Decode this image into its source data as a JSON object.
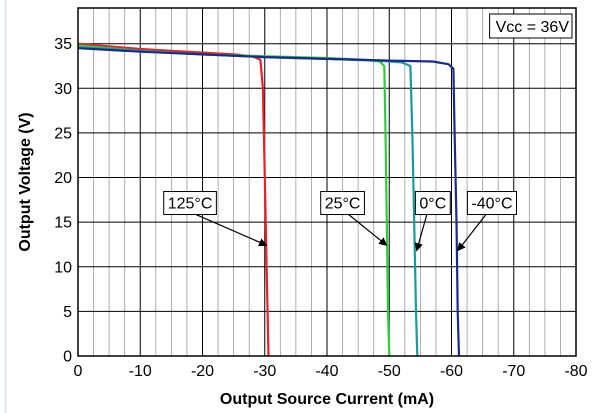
{
  "chart_data": {
    "type": "line",
    "title": "",
    "xlabel": "Output Source Current (mA)",
    "ylabel": "Output Voltage (V)",
    "xlim": [
      0,
      -80
    ],
    "ylim": [
      0,
      39
    ],
    "x_ticks": [
      0,
      -10,
      -20,
      -30,
      -40,
      -50,
      -60,
      -70,
      -80
    ],
    "y_ticks": [
      0,
      5,
      10,
      15,
      20,
      25,
      30,
      35
    ],
    "grid": true,
    "annotation": "Vcc = 36V",
    "series": [
      {
        "name": "125°C",
        "color": "#e8202a",
        "points": [
          [
            0,
            35.0
          ],
          [
            -5,
            34.7
          ],
          [
            -10,
            34.4
          ],
          [
            -15,
            34.2
          ],
          [
            -20,
            34.0
          ],
          [
            -25,
            33.8
          ],
          [
            -28,
            33.6
          ],
          [
            -29.3,
            33.2
          ],
          [
            -29.7,
            30
          ],
          [
            -30.0,
            20
          ],
          [
            -30.3,
            10
          ],
          [
            -30.6,
            0
          ]
        ]
      },
      {
        "name": "25°C",
        "color": "#2ecc40",
        "points": [
          [
            0,
            34.8
          ],
          [
            -10,
            34.2
          ],
          [
            -20,
            33.8
          ],
          [
            -30,
            33.6
          ],
          [
            -40,
            33.4
          ],
          [
            -46,
            33.2
          ],
          [
            -48.5,
            33.0
          ],
          [
            -49.2,
            32.5
          ],
          [
            -49.4,
            25
          ],
          [
            -49.6,
            15
          ],
          [
            -49.8,
            5
          ],
          [
            -50.0,
            0
          ]
        ]
      },
      {
        "name": "0°C",
        "color": "#1a9a9e",
        "points": [
          [
            0,
            34.6
          ],
          [
            -10,
            34.2
          ],
          [
            -20,
            33.8
          ],
          [
            -30,
            33.5
          ],
          [
            -40,
            33.3
          ],
          [
            -48,
            33.1
          ],
          [
            -52,
            32.9
          ],
          [
            -53.4,
            32.5
          ],
          [
            -53.7,
            25
          ],
          [
            -54.0,
            15
          ],
          [
            -54.3,
            5
          ],
          [
            -54.5,
            0
          ]
        ]
      },
      {
        "name": "-40°C",
        "color": "#1a2a8c",
        "points": [
          [
            0,
            34.5
          ],
          [
            -10,
            34.1
          ],
          [
            -20,
            33.8
          ],
          [
            -30,
            33.5
          ],
          [
            -40,
            33.3
          ],
          [
            -50,
            33.1
          ],
          [
            -57,
            33.0
          ],
          [
            -59.5,
            32.7
          ],
          [
            -60.3,
            32.2
          ],
          [
            -60.5,
            25
          ],
          [
            -60.8,
            15
          ],
          [
            -61.0,
            5
          ],
          [
            -61.2,
            0
          ]
        ]
      }
    ],
    "callouts": [
      {
        "series": "125°C",
        "text": "125°C",
        "box": [
          -18,
          17.2
        ],
        "target": [
          -30.3,
          12.4
        ]
      },
      {
        "series": "25°C",
        "text": "25°C",
        "box": [
          -42.5,
          17.2
        ],
        "target": [
          -49.6,
          12.4
        ]
      },
      {
        "series": "0°C",
        "text": "0°C",
        "box": [
          -57.0,
          17.2
        ],
        "target": [
          -54.4,
          11.8
        ]
      },
      {
        "series": "-40°C",
        "text": "-40°C",
        "box": [
          -66.5,
          17.2
        ],
        "target": [
          -61.0,
          11.8
        ]
      }
    ]
  }
}
